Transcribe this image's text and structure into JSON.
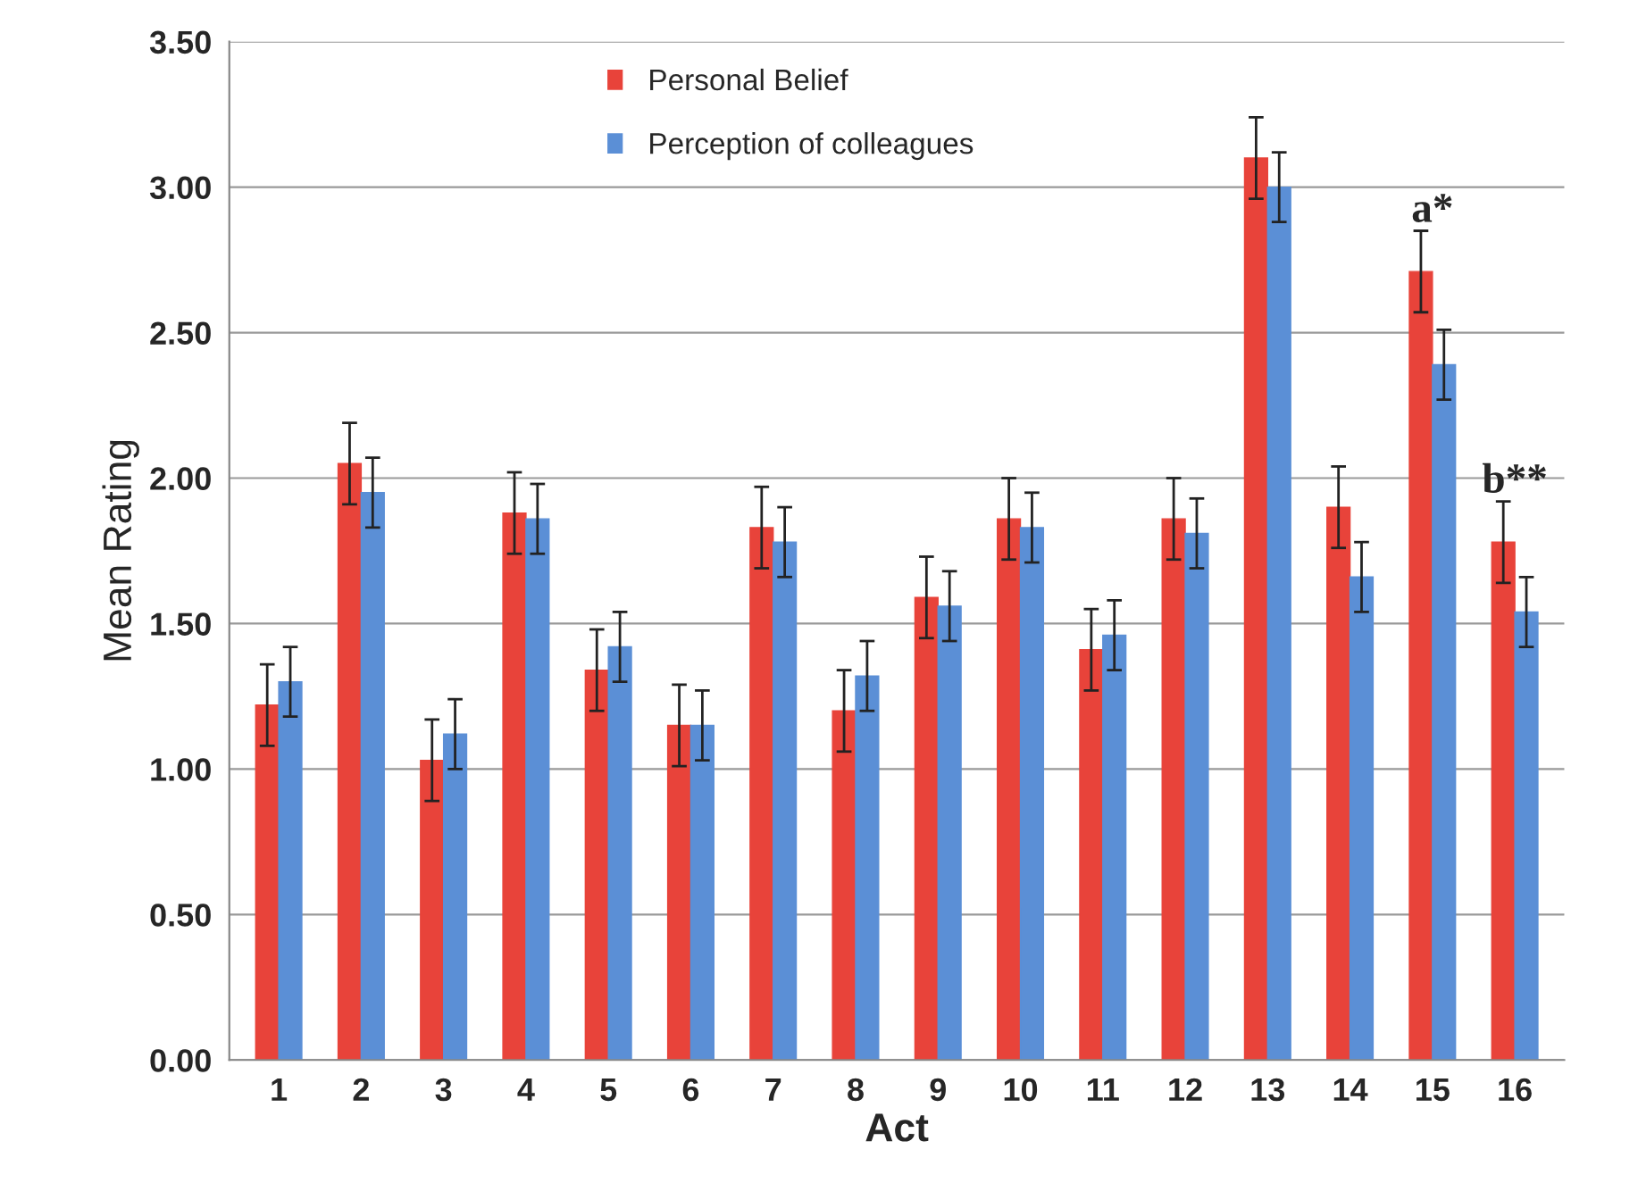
{
  "chart_data": {
    "type": "bar",
    "xlabel": "Act",
    "ylabel": "Mean Rating",
    "categories": [
      "1",
      "2",
      "3",
      "4",
      "5",
      "6",
      "7",
      "8",
      "9",
      "10",
      "11",
      "12",
      "13",
      "14",
      "15",
      "16"
    ],
    "series": [
      {
        "name": "Personal Belief",
        "color": "#e8433a",
        "values": [
          1.22,
          2.05,
          1.03,
          1.88,
          1.34,
          1.15,
          1.83,
          1.2,
          1.59,
          1.86,
          1.41,
          1.86,
          3.1,
          1.9,
          2.71,
          1.78
        ],
        "errors": [
          0.14,
          0.14,
          0.14,
          0.14,
          0.14,
          0.14,
          0.14,
          0.14,
          0.14,
          0.14,
          0.14,
          0.14,
          0.14,
          0.14,
          0.14,
          0.14
        ]
      },
      {
        "name": "Perception of colleagues",
        "color": "#5b8fd6",
        "values": [
          1.3,
          1.95,
          1.12,
          1.86,
          1.42,
          1.15,
          1.78,
          1.32,
          1.56,
          1.83,
          1.46,
          1.81,
          3.0,
          1.66,
          2.39,
          1.54
        ],
        "errors": [
          0.12,
          0.12,
          0.12,
          0.12,
          0.12,
          0.12,
          0.12,
          0.12,
          0.12,
          0.12,
          0.12,
          0.12,
          0.12,
          0.12,
          0.12,
          0.12
        ]
      }
    ],
    "ylim": [
      0,
      3.5
    ],
    "yticks": [
      {
        "value": 0,
        "label": "0.00"
      },
      {
        "value": 0.5,
        "label": "0.50"
      },
      {
        "value": 1,
        "label": "1.00"
      },
      {
        "value": 1.5,
        "label": "1.50"
      },
      {
        "value": 2,
        "label": "2.00"
      },
      {
        "value": 2.5,
        "label": "2.50"
      },
      {
        "value": 3,
        "label": "3.00"
      },
      {
        "value": 3.5,
        "label": "3.50"
      }
    ],
    "grid": "y",
    "legend": "top",
    "annotations": [
      {
        "text": "a*",
        "x": "15",
        "y": 2.85
      },
      {
        "text": "b**",
        "x": "16",
        "y": 1.92
      }
    ]
  }
}
